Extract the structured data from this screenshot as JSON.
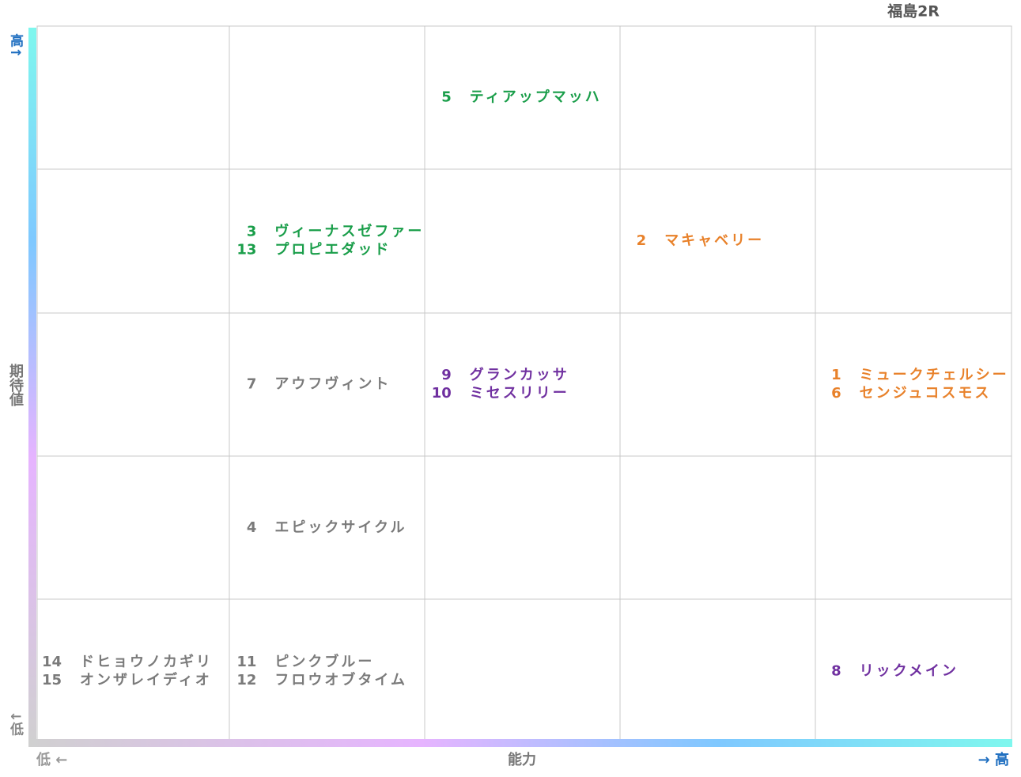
{
  "title": "福島2R",
  "axes": {
    "y_high": "高↑",
    "y_label": "期待値",
    "y_low": "↓低",
    "x_low": "低 ←",
    "x_label": "能力",
    "x_high": "→ 高"
  },
  "grid": {
    "rows": [
      [
        [],
        [],
        [
          {
            "number": 5,
            "name": "ティアップマッハ",
            "color": "#1a9e4a"
          }
        ],
        [],
        []
      ],
      [
        [],
        [
          {
            "number": 3,
            "name": "ヴィーナスゼファー",
            "color": "#1a9e4a"
          },
          {
            "number": 13,
            "name": "プロピエダッド",
            "color": "#1a9e4a"
          }
        ],
        [],
        [
          {
            "number": 2,
            "name": "マキャベリー",
            "color": "#e8812a"
          }
        ],
        []
      ],
      [
        [],
        [
          {
            "number": 7,
            "name": "アウフヴィント",
            "color": "#7a7a7a"
          }
        ],
        [
          {
            "number": 9,
            "name": "グランカッサ",
            "color": "#7030a0"
          },
          {
            "number": 10,
            "name": "ミセスリリー",
            "color": "#7030a0"
          }
        ],
        [],
        [
          {
            "number": 1,
            "name": "ミュークチェルシー",
            "color": "#e8812a"
          },
          {
            "number": 6,
            "name": "センジュコスモス",
            "color": "#e8812a"
          }
        ]
      ],
      [
        [],
        [
          {
            "number": 4,
            "name": "エピックサイクル",
            "color": "#7a7a7a"
          }
        ],
        [],
        [],
        []
      ],
      [
        [
          {
            "number": 14,
            "name": "ドヒョウノカギリ",
            "color": "#7a7a7a"
          },
          {
            "number": 15,
            "name": "オンザレイディオ",
            "color": "#7a7a7a"
          }
        ],
        [
          {
            "number": 11,
            "name": "ピンクブルー",
            "color": "#7a7a7a"
          },
          {
            "number": 12,
            "name": "フロウオブタイム",
            "color": "#7a7a7a"
          }
        ],
        [],
        [],
        [
          {
            "number": 8,
            "name": "リックメイン",
            "color": "#7030a0"
          }
        ]
      ]
    ]
  }
}
